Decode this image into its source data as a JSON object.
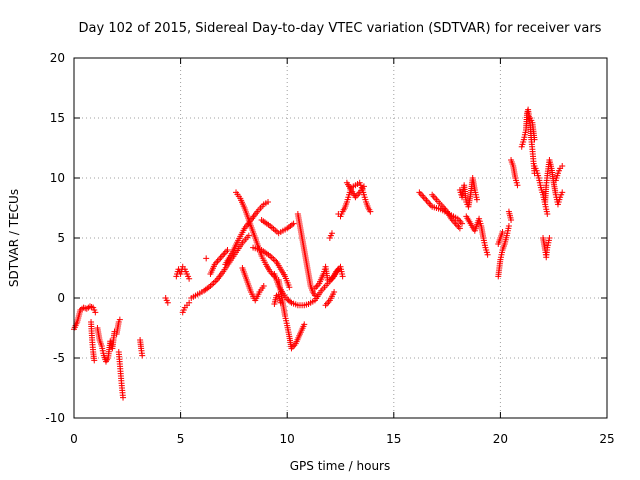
{
  "chart_data": {
    "type": "scatter",
    "title": "Day 102 of 2015, Sidereal Day-to-day VTEC variation (SDTVAR) for receiver vars",
    "xlabel": "GPS time / hours",
    "ylabel": "SDTVAR / TECUs",
    "xlim": [
      0,
      25
    ],
    "ylim": [
      -10,
      20
    ],
    "xticks": [
      0,
      5,
      10,
      15,
      20,
      25
    ],
    "yticks": [
      -10,
      -5,
      0,
      5,
      10,
      15,
      20
    ],
    "grid": true,
    "marker": "+",
    "color": "#ff0000",
    "series": [
      {
        "name": "vars",
        "segments": [
          [
            [
              0.0,
              -2.6
            ],
            [
              0.15,
              -2.0
            ],
            [
              0.3,
              -1.0
            ],
            [
              0.45,
              -0.8
            ],
            [
              0.6,
              -0.9
            ],
            [
              0.75,
              -0.7
            ],
            [
              0.9,
              -0.8
            ],
            [
              1.0,
              -1.2
            ]
          ],
          [
            [
              0.8,
              -2.0
            ],
            [
              0.85,
              -3.5
            ],
            [
              0.9,
              -4.5
            ],
            [
              0.95,
              -5.2
            ]
          ],
          [
            [
              1.1,
              -2.5
            ],
            [
              1.2,
              -3.5
            ],
            [
              1.3,
              -4.0
            ],
            [
              1.4,
              -4.8
            ],
            [
              1.5,
              -5.3
            ],
            [
              1.6,
              -5.0
            ],
            [
              1.7,
              -3.6
            ],
            [
              1.8,
              -4.2
            ],
            [
              1.9,
              -2.8
            ],
            [
              2.0,
              -3.0
            ],
            [
              2.1,
              -2.0
            ],
            [
              2.15,
              -1.8
            ]
          ],
          [
            [
              2.1,
              -4.5
            ],
            [
              2.15,
              -5.5
            ],
            [
              2.2,
              -6.5
            ],
            [
              2.25,
              -7.5
            ],
            [
              2.3,
              -8.3
            ]
          ],
          [
            [
              3.1,
              -3.5
            ],
            [
              3.15,
              -4.2
            ],
            [
              3.2,
              -4.8
            ]
          ],
          [
            [
              4.3,
              0.0
            ],
            [
              4.4,
              -0.4
            ]
          ],
          [
            [
              4.8,
              1.8
            ],
            [
              4.9,
              2.4
            ],
            [
              5.0,
              2.0
            ],
            [
              5.1,
              2.6
            ],
            [
              5.2,
              2.4
            ],
            [
              5.3,
              2.0
            ],
            [
              5.4,
              1.6
            ]
          ],
          [
            [
              5.1,
              -1.2
            ],
            [
              5.2,
              -0.8
            ],
            [
              5.3,
              -0.6
            ],
            [
              5.4,
              -0.4
            ]
          ],
          [
            [
              5.5,
              0.0
            ],
            [
              5.8,
              0.3
            ],
            [
              6.1,
              0.6
            ],
            [
              6.4,
              1.0
            ],
            [
              6.7,
              1.5
            ],
            [
              7.0,
              2.2
            ],
            [
              7.3,
              3.0
            ],
            [
              7.6,
              3.8
            ],
            [
              7.9,
              4.6
            ],
            [
              8.2,
              5.2
            ]
          ],
          [
            [
              6.4,
              2.0
            ],
            [
              6.6,
              2.8
            ],
            [
              6.8,
              3.2
            ],
            [
              7.0,
              3.6
            ],
            [
              7.2,
              4.0
            ]
          ],
          [
            [
              6.2,
              3.3
            ]
          ],
          [
            [
              7.6,
              8.8
            ],
            [
              7.8,
              8.3
            ],
            [
              8.0,
              7.5
            ],
            [
              8.2,
              6.5
            ],
            [
              8.4,
              5.5
            ],
            [
              8.6,
              4.5
            ],
            [
              8.8,
              3.5
            ],
            [
              9.0,
              2.8
            ],
            [
              9.2,
              2.2
            ],
            [
              9.4,
              1.8
            ]
          ],
          [
            [
              7.1,
              2.8
            ],
            [
              7.4,
              3.7
            ],
            [
              7.7,
              4.8
            ],
            [
              8.0,
              5.8
            ],
            [
              8.3,
              6.5
            ],
            [
              8.6,
              7.2
            ],
            [
              8.9,
              7.8
            ],
            [
              9.1,
              8.0
            ]
          ],
          [
            [
              7.9,
              2.5
            ],
            [
              8.1,
              1.5
            ],
            [
              8.3,
              0.5
            ],
            [
              8.5,
              -0.2
            ],
            [
              8.7,
              0.5
            ],
            [
              8.9,
              1.0
            ]
          ],
          [
            [
              8.8,
              6.5
            ],
            [
              9.2,
              6.0
            ],
            [
              9.6,
              5.4
            ],
            [
              10.0,
              5.8
            ],
            [
              10.3,
              6.2
            ]
          ],
          [
            [
              8.4,
              4.2
            ],
            [
              8.8,
              4.0
            ],
            [
              9.2,
              3.5
            ],
            [
              9.5,
              3.0
            ],
            [
              9.7,
              2.4
            ],
            [
              9.9,
              1.8
            ],
            [
              10.1,
              0.9
            ]
          ],
          [
            [
              9.4,
              -0.5
            ],
            [
              9.5,
              0.2
            ],
            [
              9.6,
              0.3
            ],
            [
              9.7,
              -0.4
            ]
          ],
          [
            [
              9.6,
              1.5
            ],
            [
              9.7,
              0.5
            ],
            [
              9.8,
              -0.5
            ],
            [
              9.9,
              -1.5
            ],
            [
              10.0,
              -2.3
            ],
            [
              10.1,
              -3.2
            ],
            [
              10.2,
              -4.2
            ],
            [
              10.4,
              -3.8
            ],
            [
              10.6,
              -3.0
            ],
            [
              10.8,
              -2.2
            ]
          ],
          [
            [
              9.4,
              2.0
            ],
            [
              9.6,
              1.0
            ],
            [
              9.8,
              0.4
            ],
            [
              10.0,
              -0.1
            ],
            [
              10.2,
              -0.4
            ],
            [
              10.5,
              -0.6
            ],
            [
              10.8,
              -0.6
            ],
            [
              11.0,
              -0.5
            ],
            [
              11.3,
              -0.2
            ],
            [
              11.6,
              0.6
            ],
            [
              11.9,
              1.2
            ],
            [
              12.2,
              1.8
            ],
            [
              12.4,
              2.4
            ]
          ],
          [
            [
              10.5,
              7.0
            ],
            [
              10.6,
              6.0
            ],
            [
              10.7,
              5.0
            ],
            [
              10.8,
              4.0
            ],
            [
              10.9,
              3.0
            ],
            [
              11.0,
              2.0
            ],
            [
              11.1,
              1.0
            ],
            [
              11.2,
              0.5
            ],
            [
              11.3,
              0.2
            ]
          ],
          [
            [
              11.3,
              0.8
            ],
            [
              11.5,
              1.2
            ],
            [
              11.7,
              2.0
            ],
            [
              11.8,
              2.6
            ],
            [
              11.9,
              1.5
            ],
            [
              12.1,
              1.6
            ],
            [
              12.3,
              2.2
            ],
            [
              12.5,
              2.6
            ],
            [
              12.6,
              1.8
            ]
          ],
          [
            [
              11.8,
              -0.6
            ],
            [
              12.0,
              -0.2
            ],
            [
              12.2,
              0.5
            ]
          ],
          [
            [
              12.0,
              5.0
            ],
            [
              12.1,
              5.4
            ]
          ],
          [
            [
              12.4,
              7.0
            ],
            [
              12.5,
              6.8
            ],
            [
              12.6,
              7.2
            ],
            [
              12.7,
              7.5
            ],
            [
              12.8,
              8.0
            ],
            [
              12.9,
              8.6
            ],
            [
              13.0,
              9.2
            ],
            [
              13.2,
              9.4
            ],
            [
              13.4,
              9.6
            ],
            [
              13.5,
              9.2
            ],
            [
              13.6,
              8.6
            ],
            [
              13.7,
              8.0
            ],
            [
              13.8,
              7.5
            ],
            [
              13.9,
              7.2
            ]
          ],
          [
            [
              12.8,
              9.6
            ],
            [
              13.0,
              9.0
            ],
            [
              13.2,
              8.4
            ],
            [
              13.4,
              8.8
            ],
            [
              13.6,
              9.3
            ]
          ],
          [
            [
              16.2,
              8.8
            ],
            [
              16.4,
              8.4
            ],
            [
              16.6,
              8.0
            ],
            [
              16.8,
              7.6
            ],
            [
              17.0,
              7.5
            ],
            [
              17.2,
              7.4
            ],
            [
              17.4,
              7.2
            ],
            [
              17.6,
              7.0
            ],
            [
              17.8,
              6.8
            ],
            [
              18.0,
              6.6
            ],
            [
              18.2,
              6.2
            ]
          ],
          [
            [
              16.8,
              8.6
            ],
            [
              17.0,
              8.2
            ],
            [
              17.3,
              7.6
            ],
            [
              17.5,
              7.2
            ],
            [
              17.7,
              6.6
            ],
            [
              17.9,
              6.2
            ],
            [
              18.1,
              5.8
            ]
          ],
          [
            [
              18.1,
              9.0
            ],
            [
              18.2,
              8.4
            ],
            [
              18.3,
              9.4
            ],
            [
              18.4,
              8.0
            ],
            [
              18.5,
              7.6
            ],
            [
              18.6,
              8.6
            ],
            [
              18.7,
              10.0
            ],
            [
              18.8,
              9.0
            ],
            [
              18.9,
              8.2
            ]
          ],
          [
            [
              18.4,
              6.8
            ],
            [
              18.6,
              6.2
            ],
            [
              18.8,
              5.6
            ],
            [
              19.0,
              6.6
            ],
            [
              19.1,
              6.0
            ],
            [
              19.2,
              5.0
            ],
            [
              19.3,
              4.2
            ],
            [
              19.4,
              3.6
            ]
          ],
          [
            [
              19.9,
              1.8
            ],
            [
              19.95,
              2.5
            ],
            [
              20.0,
              3.2
            ],
            [
              20.1,
              4.0
            ],
            [
              20.2,
              4.5
            ],
            [
              20.3,
              5.2
            ],
            [
              20.4,
              6.0
            ]
          ],
          [
            [
              19.9,
              4.5
            ],
            [
              20.0,
              5.0
            ],
            [
              20.1,
              5.5
            ]
          ],
          [
            [
              20.4,
              7.2
            ],
            [
              20.5,
              6.5
            ]
          ],
          [
            [
              20.5,
              11.5
            ],
            [
              20.6,
              11.0
            ],
            [
              20.7,
              10.0
            ],
            [
              20.8,
              9.4
            ]
          ],
          [
            [
              21.0,
              12.6
            ],
            [
              21.1,
              13.2
            ],
            [
              21.2,
              14.0
            ],
            [
              21.25,
              15.4
            ],
            [
              21.3,
              15.7
            ],
            [
              21.4,
              14.4
            ],
            [
              21.45,
              13.2
            ],
            [
              21.5,
              12.4
            ],
            [
              21.55,
              11.4
            ],
            [
              21.6,
              10.4
            ]
          ],
          [
            [
              21.4,
              15.0
            ],
            [
              21.5,
              14.6
            ],
            [
              21.6,
              13.2
            ]
          ],
          [
            [
              21.6,
              11.0
            ],
            [
              21.7,
              10.6
            ],
            [
              21.8,
              10.0
            ],
            [
              21.9,
              9.2
            ],
            [
              22.0,
              8.6
            ],
            [
              22.1,
              7.8
            ],
            [
              22.2,
              7.0
            ]
          ],
          [
            [
              22.0,
              5.0
            ],
            [
              22.1,
              4.0
            ],
            [
              22.15,
              3.4
            ],
            [
              22.2,
              4.2
            ],
            [
              22.3,
              5.0
            ]
          ],
          [
            [
              22.1,
              8.0
            ],
            [
              22.15,
              9.4
            ],
            [
              22.2,
              10.2
            ],
            [
              22.3,
              11.5
            ],
            [
              22.4,
              10.8
            ],
            [
              22.5,
              9.6
            ],
            [
              22.6,
              8.6
            ],
            [
              22.7,
              7.8
            ],
            [
              22.8,
              8.4
            ],
            [
              22.9,
              8.8
            ]
          ],
          [
            [
              22.6,
              9.8
            ],
            [
              22.7,
              10.4
            ],
            [
              22.8,
              10.8
            ],
            [
              22.9,
              11.0
            ]
          ]
        ]
      }
    ]
  }
}
